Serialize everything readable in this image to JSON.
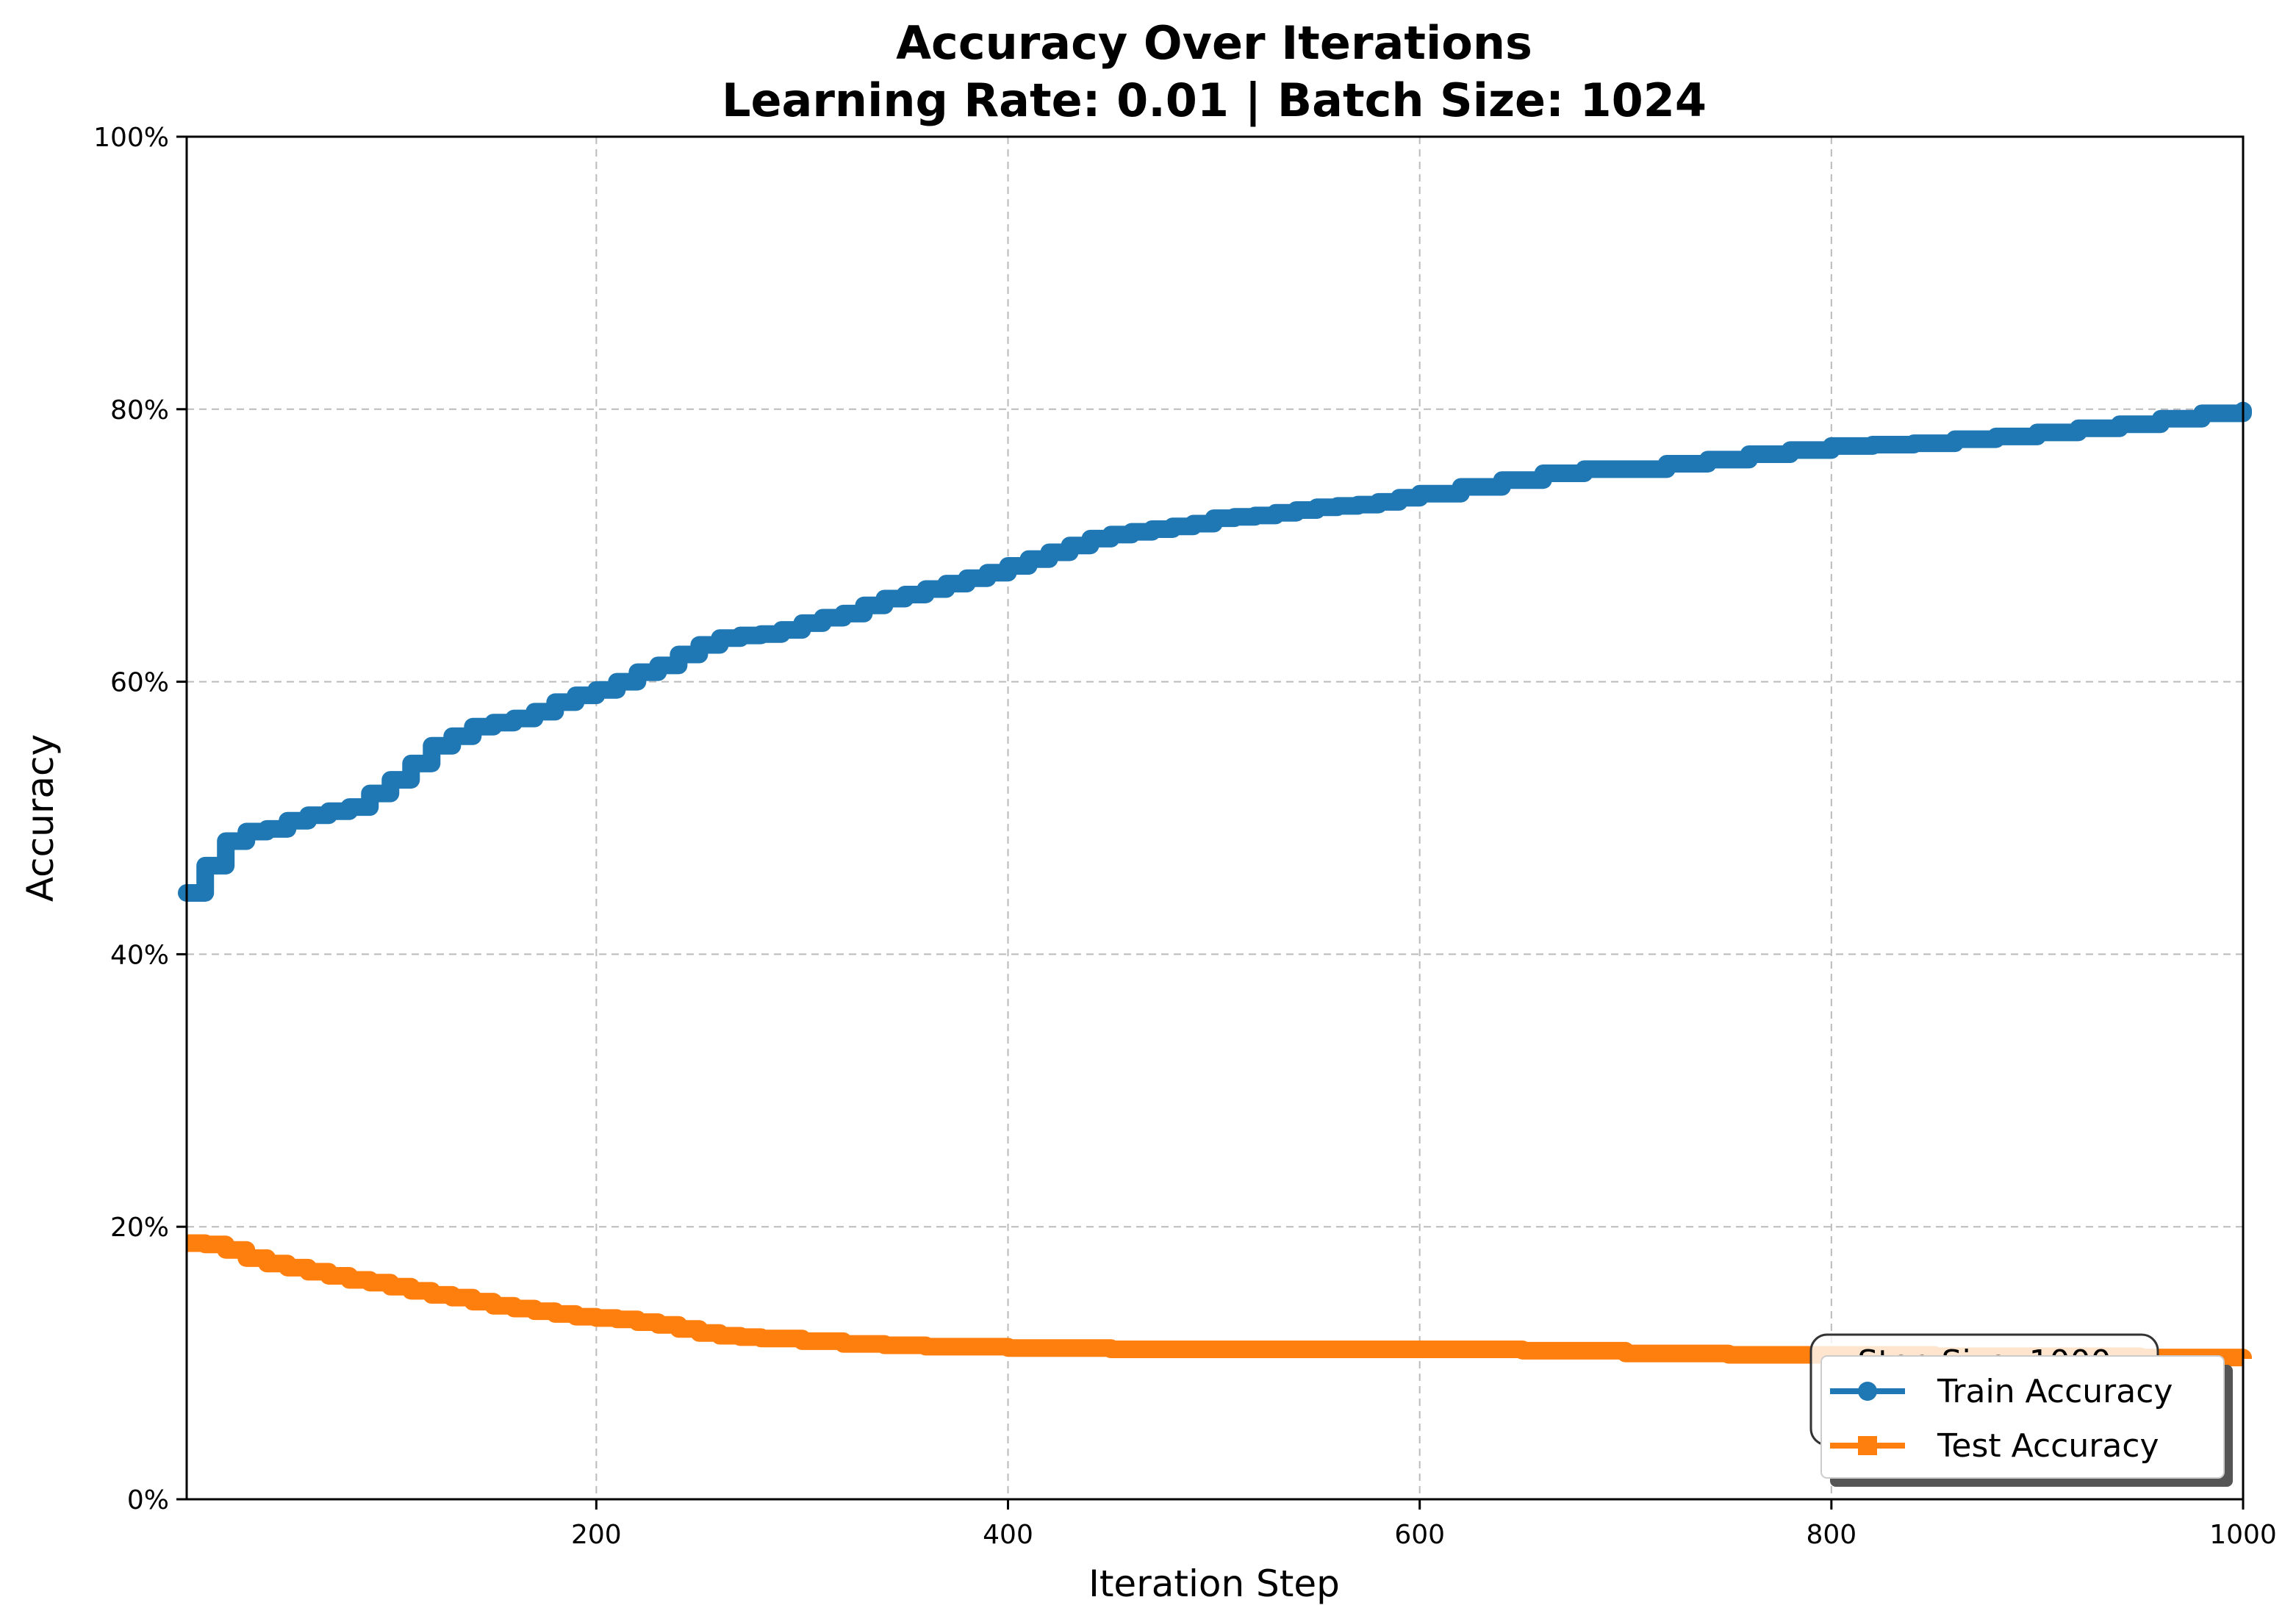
{
  "chart_data": {
    "type": "line",
    "title": "Accuracy Over Iterations",
    "subtitle": "Learning Rate: 0.01 | Batch Size: 1024",
    "xlabel": "Iteration Step",
    "ylabel": "Accuracy",
    "xlim": [
      1,
      1000
    ],
    "ylim": [
      0,
      100
    ],
    "x_ticks": [
      200,
      400,
      600,
      800,
      1000
    ],
    "y_ticks": [
      0,
      20,
      40,
      60,
      80,
      100
    ],
    "y_tick_format": "percent",
    "grid": true,
    "legend_position": "lower-right",
    "annotation": "Step Size: 1000",
    "series": [
      {
        "name": "Train Accuracy",
        "color": "#1f77b4",
        "marker": "circle",
        "x": [
          1,
          10,
          20,
          30,
          40,
          50,
          60,
          70,
          80,
          90,
          100,
          110,
          120,
          130,
          140,
          150,
          160,
          170,
          180,
          190,
          200,
          210,
          220,
          230,
          240,
          250,
          260,
          270,
          280,
          290,
          300,
          310,
          320,
          330,
          340,
          350,
          360,
          370,
          380,
          390,
          400,
          410,
          420,
          430,
          440,
          450,
          460,
          470,
          480,
          490,
          500,
          510,
          520,
          530,
          540,
          550,
          560,
          570,
          580,
          590,
          600,
          620,
          640,
          660,
          680,
          700,
          720,
          740,
          760,
          780,
          800,
          820,
          840,
          860,
          880,
          900,
          920,
          940,
          960,
          980,
          1000
        ],
        "y": [
          44.5,
          46.5,
          48.3,
          49.0,
          49.2,
          49.8,
          50.2,
          50.5,
          50.8,
          51.8,
          52.8,
          54.0,
          55.3,
          56.0,
          56.7,
          57.0,
          57.3,
          57.8,
          58.5,
          59.0,
          59.4,
          60.0,
          60.7,
          61.2,
          62.0,
          62.7,
          63.2,
          63.4,
          63.5,
          63.8,
          64.3,
          64.7,
          65.0,
          65.6,
          66.1,
          66.4,
          66.8,
          67.2,
          67.6,
          68.0,
          68.5,
          69.0,
          69.5,
          70.0,
          70.5,
          70.8,
          71.0,
          71.2,
          71.4,
          71.6,
          72.0,
          72.1,
          72.2,
          72.4,
          72.6,
          72.8,
          72.9,
          73.0,
          73.2,
          73.5,
          73.8,
          74.3,
          74.8,
          75.3,
          75.6,
          75.6,
          76.0,
          76.3,
          76.7,
          77.0,
          77.3,
          77.4,
          77.5,
          77.8,
          78.0,
          78.3,
          78.6,
          78.9,
          79.3,
          79.7,
          79.9
        ]
      },
      {
        "name": "Test Accuracy",
        "color": "#ff7f0e",
        "marker": "square",
        "x": [
          1,
          10,
          20,
          30,
          40,
          50,
          60,
          70,
          80,
          90,
          100,
          110,
          120,
          130,
          140,
          150,
          160,
          170,
          180,
          190,
          200,
          210,
          220,
          230,
          240,
          250,
          260,
          270,
          280,
          290,
          300,
          320,
          340,
          360,
          380,
          400,
          450,
          500,
          550,
          600,
          650,
          700,
          750,
          800,
          850,
          900,
          950,
          1000
        ],
        "y": [
          18.8,
          18.7,
          18.3,
          17.7,
          17.3,
          17.0,
          16.7,
          16.4,
          16.1,
          15.9,
          15.6,
          15.3,
          15.0,
          14.8,
          14.5,
          14.2,
          14.0,
          13.8,
          13.6,
          13.4,
          13.3,
          13.2,
          13.0,
          12.8,
          12.5,
          12.2,
          12.0,
          11.9,
          11.8,
          11.8,
          11.6,
          11.4,
          11.3,
          11.2,
          11.2,
          11.1,
          11.0,
          11.0,
          11.0,
          11.0,
          10.9,
          10.7,
          10.6,
          10.6,
          10.5,
          10.5,
          10.4,
          10.3
        ]
      }
    ]
  }
}
